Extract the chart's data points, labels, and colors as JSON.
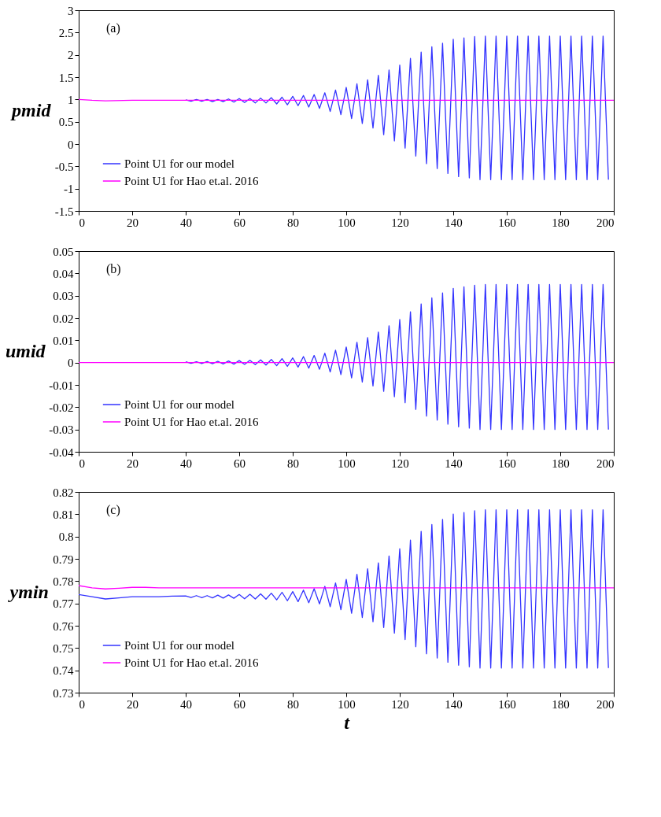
{
  "chart_data": [
    {
      "type": "line",
      "ylabel": "pmid",
      "annotations": [
        "(a)"
      ],
      "legend": "bottom left",
      "xlim": [
        0,
        200
      ],
      "xticks": [
        0,
        20,
        40,
        60,
        80,
        100,
        120,
        140,
        160,
        180,
        200
      ],
      "ylim": [
        -1.5,
        3
      ],
      "yticks": [
        -1.5,
        -1,
        -0.5,
        0,
        0.5,
        1,
        1.5,
        2,
        2.5,
        3
      ],
      "series": [
        {
          "name": "Point U1 for our model",
          "color": "#3333ff",
          "x": [
            40,
            42,
            44,
            46,
            48,
            50,
            52,
            54,
            56,
            58,
            60,
            62,
            64,
            66,
            68,
            70,
            72,
            74,
            76,
            78,
            80,
            82,
            84,
            86,
            88,
            90,
            92,
            94,
            96,
            98,
            100,
            102,
            104,
            106,
            108,
            110,
            112,
            114,
            116,
            118,
            120,
            122,
            124,
            126,
            128,
            130,
            132,
            134,
            136,
            138,
            140,
            142,
            144,
            146,
            148,
            150,
            152,
            154,
            156,
            158,
            160,
            162,
            164,
            166,
            168,
            170,
            172,
            174,
            176,
            178,
            180,
            182,
            184,
            186,
            188,
            190,
            192,
            194,
            196,
            198
          ],
          "values": [
            0.99,
            0.96,
            1.0,
            0.96,
            1.0,
            0.95,
            1.0,
            0.95,
            1.01,
            0.94,
            1.02,
            0.93,
            1.02,
            0.92,
            1.03,
            0.92,
            1.04,
            0.9,
            1.05,
            0.88,
            1.07,
            0.86,
            1.09,
            0.83,
            1.11,
            0.8,
            1.15,
            0.73,
            1.21,
            0.66,
            1.27,
            0.57,
            1.35,
            0.46,
            1.44,
            0.36,
            1.54,
            0.21,
            1.66,
            0.07,
            1.77,
            -0.09,
            1.92,
            -0.27,
            2.06,
            -0.44,
            2.18,
            -0.55,
            2.26,
            -0.66,
            2.35,
            -0.73,
            2.38,
            -0.76,
            2.41,
            -0.8,
            2.42,
            -0.8,
            2.42,
            -0.8,
            2.42,
            -0.8,
            2.42,
            -0.8,
            2.42,
            -0.8,
            2.42,
            -0.8,
            2.42,
            -0.8,
            2.42,
            -0.8,
            2.42,
            -0.8,
            2.42,
            -0.8,
            2.42,
            -0.8,
            2.42,
            -0.8
          ]
        },
        {
          "name": "Point U1 for Hao et.al. 2016",
          "color": "#ff00ff",
          "x": [
            0,
            5,
            10,
            20,
            40,
            100,
            200
          ],
          "values": [
            1.0,
            0.98,
            0.97,
            0.98,
            0.98,
            0.98,
            0.98
          ]
        }
      ]
    },
    {
      "type": "line",
      "ylabel": "umid",
      "annotations": [
        "(b)"
      ],
      "legend": "bottom left",
      "xlim": [
        0,
        200
      ],
      "xticks": [
        0,
        20,
        40,
        60,
        80,
        100,
        120,
        140,
        160,
        180,
        200
      ],
      "ylim": [
        -0.04,
        0.05
      ],
      "yticks": [
        -0.04,
        -0.03,
        -0.02,
        -0.01,
        0,
        0.01,
        0.02,
        0.03,
        0.04,
        0.05
      ],
      "series": [
        {
          "name": "Point U1 for our model",
          "color": "#3333ff",
          "x": [
            40,
            42,
            44,
            46,
            48,
            50,
            52,
            54,
            56,
            58,
            60,
            62,
            64,
            66,
            68,
            70,
            72,
            74,
            76,
            78,
            80,
            82,
            84,
            86,
            88,
            90,
            92,
            94,
            96,
            98,
            100,
            102,
            104,
            106,
            108,
            110,
            112,
            114,
            116,
            118,
            120,
            122,
            124,
            126,
            128,
            130,
            132,
            134,
            136,
            138,
            140,
            142,
            144,
            146,
            148,
            150,
            152,
            154,
            156,
            158,
            160,
            162,
            164,
            166,
            168,
            170,
            172,
            174,
            176,
            178,
            180,
            182,
            184,
            186,
            188,
            190,
            192,
            194,
            196,
            198
          ],
          "values": [
            0.0004,
            -0.0003,
            0.0004,
            -0.0004,
            0.0005,
            -0.0005,
            0.0006,
            -0.0006,
            0.0007,
            -0.0007,
            0.0009,
            -0.0008,
            0.001,
            -0.0009,
            0.0012,
            -0.0011,
            0.0014,
            -0.0014,
            0.0018,
            -0.0017,
            0.0021,
            -0.002,
            0.0027,
            -0.0025,
            0.0032,
            -0.003,
            0.0042,
            -0.0042,
            0.0056,
            -0.0054,
            0.007,
            -0.0069,
            0.0091,
            -0.0087,
            0.0112,
            -0.0105,
            0.0137,
            -0.0129,
            0.0165,
            -0.0153,
            0.0193,
            -0.018,
            0.0228,
            -0.021,
            0.0263,
            -0.024,
            0.029,
            -0.0258,
            0.0312,
            -0.0276,
            0.0333,
            -0.0288,
            0.034,
            -0.0294,
            0.0347,
            -0.03,
            0.035,
            -0.03,
            0.035,
            -0.03,
            0.035,
            -0.03,
            0.035,
            -0.03,
            0.035,
            -0.03,
            0.035,
            -0.03,
            0.035,
            -0.03,
            0.035,
            -0.03,
            0.035,
            -0.03,
            0.035,
            -0.03,
            0.035,
            -0.03,
            0.035,
            -0.03
          ]
        },
        {
          "name": "Point U1 for Hao et.al. 2016",
          "color": "#ff00ff",
          "x": [
            0,
            50,
            100,
            150,
            200
          ],
          "values": [
            0,
            0,
            0,
            0,
            0
          ]
        }
      ]
    },
    {
      "type": "line",
      "ylabel": "ymin",
      "xlabel": "t",
      "annotations": [
        "(c)"
      ],
      "legend": "bottom left",
      "xlim": [
        0,
        200
      ],
      "xticks": [
        0,
        20,
        40,
        60,
        80,
        100,
        120,
        140,
        160,
        180,
        200
      ],
      "ylim": [
        0.73,
        0.82
      ],
      "yticks": [
        0.73,
        0.74,
        0.75,
        0.76,
        0.77,
        0.78,
        0.79,
        0.8,
        0.81,
        0.82
      ],
      "series": [
        {
          "name": "Point U1 for our model",
          "color": "#3333ff",
          "x": [
            0,
            5,
            10,
            15,
            20,
            25,
            30,
            35,
            40,
            42,
            44,
            46,
            48,
            50,
            52,
            54,
            56,
            58,
            60,
            62,
            64,
            66,
            68,
            70,
            72,
            74,
            76,
            78,
            80,
            82,
            84,
            86,
            88,
            90,
            92,
            94,
            96,
            98,
            100,
            102,
            104,
            106,
            108,
            110,
            112,
            114,
            116,
            118,
            120,
            122,
            124,
            126,
            128,
            130,
            132,
            134,
            136,
            138,
            140,
            142,
            144,
            146,
            148,
            150,
            152,
            154,
            156,
            158,
            160,
            162,
            164,
            166,
            168,
            170,
            172,
            174,
            176,
            178,
            180,
            182,
            184,
            186,
            188,
            190,
            192,
            194,
            196,
            198
          ],
          "values": [
            0.774,
            0.773,
            0.772,
            0.7725,
            0.773,
            0.773,
            0.773,
            0.7733,
            0.7734,
            0.7727,
            0.7735,
            0.7726,
            0.7735,
            0.7725,
            0.7737,
            0.7724,
            0.7738,
            0.7723,
            0.774,
            0.7721,
            0.7741,
            0.772,
            0.7743,
            0.7719,
            0.7746,
            0.7716,
            0.775,
            0.7712,
            0.7753,
            0.7708,
            0.776,
            0.7703,
            0.7766,
            0.7698,
            0.7777,
            0.7685,
            0.7792,
            0.7672,
            0.7808,
            0.7656,
            0.7831,
            0.7637,
            0.7855,
            0.7618,
            0.7882,
            0.7592,
            0.7913,
            0.7567,
            0.7945,
            0.7538,
            0.7984,
            0.7506,
            0.8023,
            0.7474,
            0.8054,
            0.7455,
            0.8077,
            0.7436,
            0.8101,
            0.7423,
            0.8108,
            0.7416,
            0.8116,
            0.741,
            0.812,
            0.741,
            0.812,
            0.741,
            0.812,
            0.741,
            0.812,
            0.741,
            0.812,
            0.741,
            0.812,
            0.741,
            0.812,
            0.741,
            0.812,
            0.741,
            0.812,
            0.741,
            0.812,
            0.741,
            0.812,
            0.741,
            0.812,
            0.741
          ]
        },
        {
          "name": "Point U1 for Hao et.al. 2016",
          "color": "#ff00ff",
          "x": [
            0,
            5,
            10,
            15,
            20,
            25,
            30,
            40,
            60,
            100,
            200
          ],
          "values": [
            0.778,
            0.777,
            0.7765,
            0.7768,
            0.7772,
            0.7772,
            0.777,
            0.777,
            0.777,
            0.777,
            0.777
          ]
        }
      ]
    }
  ]
}
